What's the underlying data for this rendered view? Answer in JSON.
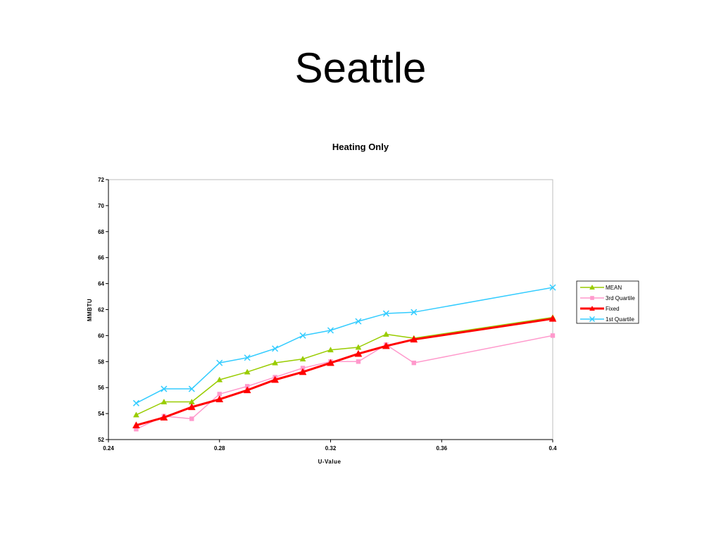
{
  "slide": {
    "title": "Seattle"
  },
  "chart_data": {
    "type": "line",
    "title": "Heating Only",
    "xlabel": "U-Value",
    "ylabel": "MMBTU",
    "xlim": [
      0.24,
      0.4
    ],
    "ylim": [
      52,
      72
    ],
    "xticks": [
      0.24,
      0.28,
      0.32,
      0.36,
      0.4
    ],
    "xtick_labels": [
      "0.24",
      "0.28",
      "0.32",
      "0.36",
      "0.4"
    ],
    "yticks": [
      52,
      54,
      56,
      58,
      60,
      62,
      64,
      66,
      68,
      70,
      72
    ],
    "ytick_labels": [
      "52",
      "54",
      "56",
      "58",
      "60",
      "62",
      "64",
      "66",
      "68",
      "70",
      "72"
    ],
    "x": [
      0.25,
      0.26,
      0.27,
      0.28,
      0.29,
      0.3,
      0.31,
      0.32,
      0.33,
      0.34,
      0.35,
      0.4
    ],
    "legend_position": "right",
    "grid": false,
    "series": [
      {
        "name": "MEAN",
        "color": "#99cc00",
        "marker": "triangle",
        "line_width": 1.5,
        "values": [
          53.9,
          54.9,
          54.9,
          56.6,
          57.2,
          57.9,
          58.2,
          58.9,
          59.1,
          60.1,
          59.8,
          61.4
        ]
      },
      {
        "name": "3rd Quartile",
        "color": "#ff99cc",
        "marker": "square",
        "line_width": 1.5,
        "values": [
          52.8,
          53.8,
          53.6,
          55.5,
          56.1,
          56.8,
          57.5,
          58.0,
          58.0,
          59.3,
          57.9,
          60.0
        ]
      },
      {
        "name": "Fixed",
        "color": "#ff0000",
        "marker": "triangle",
        "line_width": 3,
        "values": [
          53.1,
          53.7,
          54.5,
          55.1,
          55.8,
          56.6,
          57.2,
          57.9,
          58.6,
          59.2,
          59.7,
          61.3
        ]
      },
      {
        "name": "1st Quartile",
        "color": "#33ccff",
        "marker": "x",
        "line_width": 1.5,
        "values": [
          54.8,
          55.9,
          55.9,
          57.9,
          58.3,
          59.0,
          60.0,
          60.4,
          61.1,
          61.7,
          61.8,
          63.7
        ]
      }
    ]
  }
}
